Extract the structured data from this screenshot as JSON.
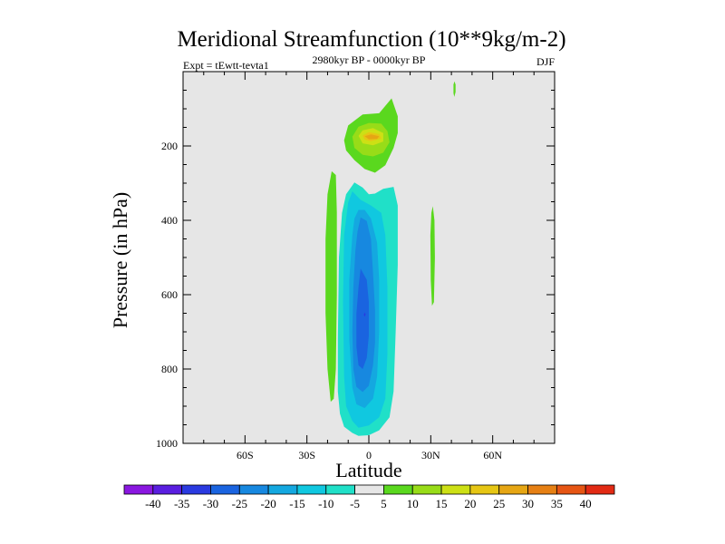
{
  "chart_data": {
    "type": "contour",
    "title": "Meridional Streamfunction (10**9kg/m-2)",
    "subtitle_left": "Expt = tEwtt-tevta1",
    "subtitle_center": "2980kyr BP - 0000kyr BP",
    "subtitle_right": "DJF",
    "xlabel": "Latitude",
    "ylabel": "Pressure (in hPa)",
    "xlim": [
      -90,
      90
    ],
    "ylim": [
      1000,
      0
    ],
    "x_ticks": [
      {
        "value": -60,
        "label": "60S"
      },
      {
        "value": -30,
        "label": "30S"
      },
      {
        "value": 0,
        "label": "0"
      },
      {
        "value": 30,
        "label": "30N"
      },
      {
        "value": 60,
        "label": "60N"
      }
    ],
    "y_ticks": [
      {
        "value": 200,
        "label": "200"
      },
      {
        "value": 400,
        "label": "400"
      },
      {
        "value": 600,
        "label": "600"
      },
      {
        "value": 800,
        "label": "800"
      },
      {
        "value": 1000,
        "label": "1000"
      }
    ],
    "background_color": "#e6e6e6",
    "colorbar": {
      "labels": [
        "-40",
        "-35",
        "-30",
        "-25",
        "-20",
        "-15",
        "-10",
        "-5",
        "5",
        "10",
        "15",
        "20",
        "25",
        "30",
        "35",
        "40"
      ],
      "colors": [
        "#8a17e0",
        "#5a1ee0",
        "#2a3ae0",
        "#1a64e0",
        "#1788e0",
        "#14a8e0",
        "#10c8e0",
        "#20e0c8",
        "#e6e6e6",
        "#5ad81e",
        "#98dc18",
        "#cde015",
        "#e6c614",
        "#e6a614",
        "#e68014",
        "#e65514",
        "#e22a14"
      ]
    },
    "features": [
      {
        "name": "upper-positive-cell",
        "lat_range": [
          -10,
          14
        ],
        "p_range": [
          70,
          270
        ],
        "max_value": 20,
        "max_lat": 2,
        "max_p": 175
      },
      {
        "name": "tropical-negative-cell",
        "lat_range": [
          -15,
          14
        ],
        "p_range": [
          300,
          980
        ],
        "min_value": -30,
        "min_lat": -2,
        "min_p": 650
      },
      {
        "name": "southern-positive-band",
        "lat_range": [
          -22,
          -15
        ],
        "p_range": [
          260,
          890
        ],
        "value": 5
      },
      {
        "name": "northern-positive-band",
        "lat_range": [
          30,
          32
        ],
        "p_range": [
          360,
          630
        ],
        "value": 5
      },
      {
        "name": "upper-positive-speck",
        "lat_range": [
          41,
          42
        ],
        "p_range": [
          25,
          70
        ],
        "value": 5
      }
    ]
  }
}
